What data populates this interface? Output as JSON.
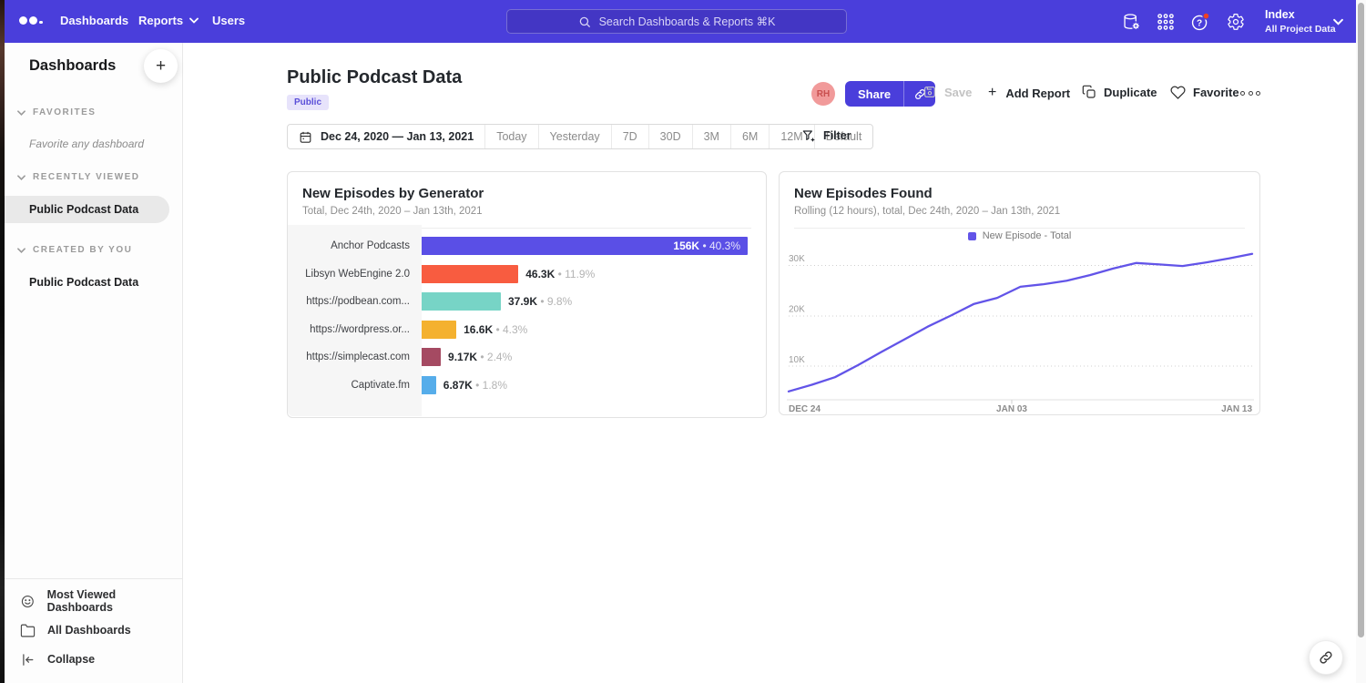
{
  "navbar": {
    "items": [
      {
        "label": "Dashboards",
        "chevron": false
      },
      {
        "label": "Reports",
        "chevron": true
      },
      {
        "label": "Users",
        "chevron": false
      }
    ],
    "search_placeholder": "Search Dashboards & Reports ⌘K",
    "workspace": {
      "name": "Index",
      "subtitle": "All Project Data"
    },
    "help_badge": true
  },
  "sidebar": {
    "title": "Dashboards",
    "add_button": "+",
    "sections": {
      "favorites": {
        "label": "FAVORITES",
        "empty_hint": "Favorite any dashboard"
      },
      "recently_viewed": {
        "label": "RECENTLY VIEWED",
        "items": [
          {
            "label": "Public Podcast Data",
            "active": true
          }
        ]
      },
      "created_by_you": {
        "label": "CREATED BY YOU",
        "items": [
          {
            "label": "Public Podcast Data",
            "active": false
          }
        ]
      }
    },
    "footer": [
      {
        "label": "Most Viewed Dashboards",
        "icon": "smiley-icon"
      },
      {
        "label": "All Dashboards",
        "icon": "folder-icon"
      },
      {
        "label": "Collapse",
        "icon": "collapse-icon"
      }
    ]
  },
  "header": {
    "title": "Public Podcast Data",
    "badge": "Public",
    "avatar_initials": "RH",
    "actions": {
      "share": "Share",
      "save": "Save",
      "add_prefix": "+",
      "add_report": "Add Report",
      "duplicate": "Duplicate",
      "favorite": "Favorite"
    }
  },
  "date_toolbar": {
    "range_label": "Dec 24, 2020 — Jan 13, 2021",
    "presets": [
      "Today",
      "Yesterday",
      "7D",
      "30D",
      "3M",
      "6M",
      "12M",
      "Default"
    ],
    "filter_label": "Filter"
  },
  "chart_data": [
    {
      "type": "bar",
      "orientation": "horizontal",
      "title": "New Episodes by Generator",
      "subtitle": "Total, Dec 24th, 2020 – Jan 13th, 2021",
      "categories": [
        "Anchor Podcasts",
        "Libsyn WebEngine 2.0",
        "https://podbean.com...",
        "https://wordpress.or...",
        "https://simplecast.com",
        "Captivate.fm"
      ],
      "values": [
        156000,
        46300,
        37900,
        16600,
        9170,
        6870
      ],
      "value_labels": [
        "156K",
        "46.3K",
        "37.9K",
        "16.6K",
        "9.17K",
        "6.87K"
      ],
      "pct_labels": [
        "40.3%",
        "11.9%",
        "9.8%",
        "4.3%",
        "2.4%",
        "1.8%"
      ],
      "colors": [
        "#5a4fe6",
        "#f85c40",
        "#77d4c6",
        "#f4b12f",
        "#a54a62",
        "#56adea"
      ],
      "xlim": [
        0,
        156000
      ],
      "label_in_bar_index": 0
    },
    {
      "type": "line",
      "title": "New Episodes Found",
      "subtitle": "Rolling (12 hours), total, Dec 24th, 2020 – Jan 13th, 2021",
      "legend": [
        "New Episode - Total"
      ],
      "legend_position": "top-center",
      "color": "#6254e8",
      "grid": "dotted-horizontal",
      "x_ticks": [
        "DEC 24",
        "JAN 03",
        "JAN 13"
      ],
      "y_ticks": [
        "10K",
        "20K",
        "30K"
      ],
      "ylim": [
        0,
        33000
      ],
      "values": [
        5000,
        6300,
        7800,
        10200,
        12800,
        15300,
        17800,
        20000,
        22300,
        23500,
        25700,
        26200,
        26900,
        28000,
        29300,
        30400,
        30100,
        29800,
        30500,
        31300,
        32200
      ]
    }
  ],
  "colors": {
    "brand": "#4a3edb",
    "badge_bg": "#e7e3fb",
    "badge_text": "#5a4fd8",
    "avatar_bg": "#f19a9a",
    "sidebar_active_bg": "#e9e9e9"
  }
}
